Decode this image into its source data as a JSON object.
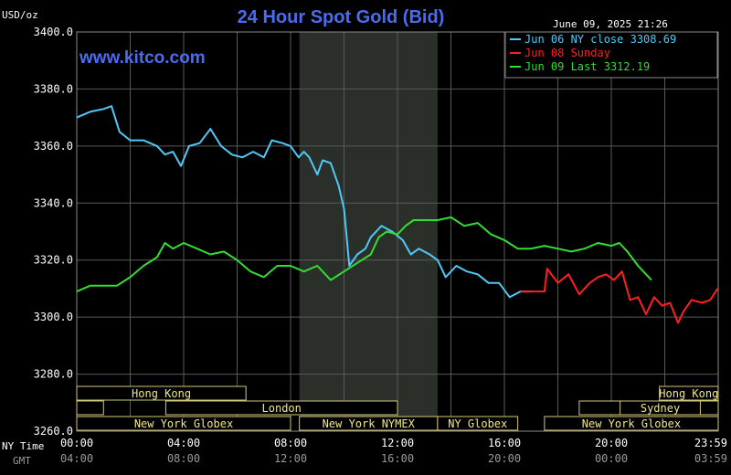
{
  "header": {
    "title": "24 Hour Spot Gold (Bid)",
    "unit": "USD/oz",
    "timestamp": "June 09, 2025 21:26",
    "site": "www.kitco.com"
  },
  "axis_labels": {
    "ny_time": "NY Time",
    "gmt": "GMT"
  },
  "legend": [
    {
      "text": "Jun 06 NY close 3308.69",
      "color": "#4fc9f7"
    },
    {
      "text": "Jun 08 Sunday",
      "color": "#ff2020"
    },
    {
      "text": "Jun 09 Last 3312.19",
      "color": "#33dd33"
    }
  ],
  "sessions": {
    "row1": [
      {
        "label": "Hong Kong",
        "start": 0,
        "end": 6.33
      },
      {
        "label": "Hong Kong",
        "start": 21.8,
        "end": 24
      }
    ],
    "row2": [
      {
        "label": "",
        "start": 0,
        "end": 1
      },
      {
        "label": "London",
        "start": 3.33,
        "end": 12
      },
      {
        "label": "",
        "start": 18.8,
        "end": 24
      }
    ],
    "row2_extra": [
      {
        "label": "Sydney",
        "start": 20.33,
        "end": 23.33
      }
    ],
    "row3": [
      {
        "label": "New York Globex",
        "start": 0,
        "end": 8
      },
      {
        "label": "New York NYMEX",
        "start": 8.33,
        "end": 13.5
      },
      {
        "label": "NY Globex",
        "start": 13.5,
        "end": 16.5
      },
      {
        "label": "New York Globex",
        "start": 17.5,
        "end": 24
      }
    ]
  },
  "chart_data": {
    "type": "line",
    "title": "24 Hour Spot Gold (Bid)",
    "ylabel": "USD/oz",
    "ylim": [
      3260,
      3400
    ],
    "y_ticks": [
      "3400.0",
      "3380.0",
      "3360.0",
      "3340.0",
      "3320.0",
      "3300.0",
      "3280.0",
      "3260.0"
    ],
    "y_tick_values": [
      3400,
      3380,
      3360,
      3340,
      3320,
      3300,
      3280,
      3260
    ],
    "xlim": [
      0,
      24
    ],
    "x_ticks_ny": [
      "00:00",
      "04:00",
      "08:00",
      "12:00",
      "16:00",
      "20:00",
      "23:59"
    ],
    "x_ticks_gmt": [
      "04:00",
      "08:00",
      "12:00",
      "16:00",
      "20:00",
      "00:00",
      "03:59"
    ],
    "x_tick_values": [
      0,
      4,
      8,
      12,
      16,
      20,
      23.98
    ],
    "highlight_range": [
      8.33,
      13.5
    ],
    "series": [
      {
        "name": "Jun 06 NY close 3308.69",
        "color": "#4fc9f7",
        "x": [
          0,
          0.5,
          1,
          1.3,
          1.6,
          2,
          2.5,
          3,
          3.3,
          3.6,
          3.9,
          4.2,
          4.6,
          5,
          5.4,
          5.8,
          6.2,
          6.6,
          7,
          7.3,
          7.7,
          8,
          8.3,
          8.5,
          8.7,
          9.0,
          9.2,
          9.5,
          9.8,
          10.0,
          10.2,
          10.5,
          10.8,
          11.0,
          11.4,
          11.8,
          12.2,
          12.5,
          12.8,
          13.2,
          13.5,
          13.8,
          14.2,
          14.6,
          15,
          15.4,
          15.8,
          16.2,
          16.6,
          17.0
        ],
        "y": [
          3370,
          3372,
          3373,
          3374,
          3365,
          3362,
          3362,
          3360,
          3357,
          3358,
          3353,
          3360,
          3361,
          3366,
          3360,
          3357,
          3356,
          3358,
          3356,
          3362,
          3361,
          3360,
          3356,
          3358,
          3356,
          3350,
          3355,
          3354,
          3346,
          3338,
          3318,
          3322,
          3324,
          3328,
          3332,
          3330,
          3327,
          3322,
          3324,
          3322,
          3320,
          3314,
          3318,
          3316,
          3315,
          3312,
          3312,
          3307,
          3309,
          3309
        ]
      },
      {
        "name": "Jun 08 Sunday",
        "color": "#ff2020",
        "x": [
          16.6,
          17.5,
          17.6,
          18.0,
          18.4,
          18.8,
          19.2,
          19.5,
          19.8,
          20.1,
          20.4,
          20.7,
          21.0,
          21.3,
          21.6,
          21.9,
          22.2,
          22.5,
          22.7,
          23.0,
          23.4,
          23.7,
          23.98
        ],
        "y": [
          3309,
          3309,
          3317,
          3312,
          3315,
          3308,
          3312,
          3314,
          3315,
          3313,
          3316,
          3306,
          3307,
          3301,
          3307,
          3304,
          3305,
          3298,
          3302,
          3306,
          3305,
          3306,
          3310
        ]
      },
      {
        "name": "Jun 09 Last 3312.19",
        "color": "#33dd33",
        "x": [
          0,
          0.5,
          1,
          1.5,
          2,
          2.5,
          3,
          3.3,
          3.6,
          4,
          4.5,
          5,
          5.5,
          6,
          6.5,
          7,
          7.5,
          8,
          8.5,
          9,
          9.5,
          10,
          10.5,
          11,
          11.3,
          11.6,
          12,
          12.3,
          12.6,
          13,
          13.5,
          14,
          14.5,
          15,
          15.5,
          16,
          16.5,
          17,
          17.5,
          18,
          18.5,
          19,
          19.5,
          20,
          20.3,
          20.6,
          21,
          21.3,
          21.5
        ],
        "y": [
          3309,
          3311,
          3311,
          3311,
          3314,
          3318,
          3321,
          3326,
          3324,
          3326,
          3324,
          3322,
          3323,
          3320,
          3316,
          3314,
          3318,
          3318,
          3316,
          3318,
          3313,
          3316,
          3319,
          3322,
          3328,
          3330,
          3329,
          3332,
          3334,
          3334,
          3334,
          3335,
          3332,
          3333,
          3329,
          3327,
          3324,
          3324,
          3325,
          3324,
          3323,
          3324,
          3326,
          3325,
          3326,
          3323,
          3318,
          3315,
          3313
        ]
      }
    ]
  }
}
